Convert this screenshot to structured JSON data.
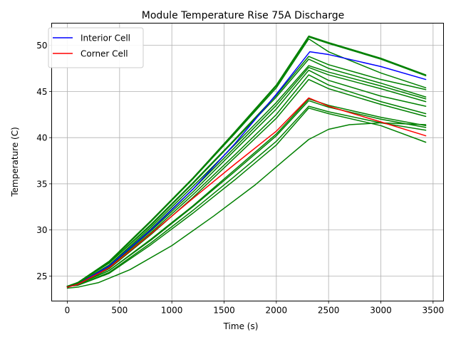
{
  "chart_data": {
    "type": "line",
    "title": "Module Temperature Rise 75A Discharge",
    "xlabel": "Time (s)",
    "ylabel": "Temperature (C)",
    "xlim": [
      -150,
      3600
    ],
    "ylim": [
      22.3,
      52.4
    ],
    "xticks": [
      0,
      500,
      1000,
      1500,
      2000,
      2500,
      3000,
      3500
    ],
    "yticks": [
      25,
      30,
      35,
      40,
      45,
      50
    ],
    "grid": true,
    "legend_position": "top-left",
    "series": [
      {
        "name": "",
        "color": "#008000",
        "values": [
          [
            0,
            23.9
          ],
          [
            100,
            24.3
          ],
          [
            400,
            26.6
          ],
          [
            800,
            31.0
          ],
          [
            1200,
            35.6
          ],
          [
            1600,
            40.6
          ],
          [
            2000,
            45.7
          ],
          [
            2310,
            51.0
          ],
          [
            2500,
            50.3
          ],
          [
            3000,
            48.6
          ],
          [
            3430,
            46.8
          ]
        ]
      },
      {
        "name": "",
        "color": "#008000",
        "values": [
          [
            0,
            23.9
          ],
          [
            100,
            24.3
          ],
          [
            400,
            26.6
          ],
          [
            800,
            31.0
          ],
          [
            1200,
            35.6
          ],
          [
            1600,
            40.5
          ],
          [
            2000,
            45.6
          ],
          [
            2310,
            50.9
          ],
          [
            2500,
            50.2
          ],
          [
            3000,
            48.5
          ],
          [
            3430,
            46.7
          ]
        ]
      },
      {
        "name": "",
        "color": "#008000",
        "values": [
          [
            0,
            23.9
          ],
          [
            100,
            24.3
          ],
          [
            400,
            26.5
          ],
          [
            800,
            30.9
          ],
          [
            1200,
            35.5
          ],
          [
            1600,
            40.4
          ],
          [
            2000,
            45.4
          ],
          [
            2310,
            50.7
          ],
          [
            2500,
            49.3
          ],
          [
            3000,
            47.0
          ],
          [
            3430,
            45.4
          ]
        ]
      },
      {
        "name": "",
        "color": "#008000",
        "values": [
          [
            0,
            23.9
          ],
          [
            100,
            24.3
          ],
          [
            400,
            26.4
          ],
          [
            800,
            30.6
          ],
          [
            1200,
            35.1
          ],
          [
            1600,
            39.8
          ],
          [
            2000,
            44.6
          ],
          [
            2310,
            48.8
          ],
          [
            2500,
            47.9
          ],
          [
            3000,
            46.3
          ],
          [
            3430,
            45.2
          ]
        ]
      },
      {
        "name": "",
        "color": "#008000",
        "values": [
          [
            0,
            23.9
          ],
          [
            100,
            24.3
          ],
          [
            400,
            26.4
          ],
          [
            800,
            30.5
          ],
          [
            1200,
            35.0
          ],
          [
            1600,
            39.7
          ],
          [
            2000,
            44.4
          ],
          [
            2310,
            48.5
          ],
          [
            2500,
            47.5
          ],
          [
            3000,
            45.9
          ],
          [
            3430,
            44.4
          ]
        ]
      },
      {
        "name": "",
        "color": "#008000",
        "values": [
          [
            0,
            23.9
          ],
          [
            100,
            24.2
          ],
          [
            400,
            26.2
          ],
          [
            800,
            30.3
          ],
          [
            1200,
            34.7
          ],
          [
            1600,
            39.2
          ],
          [
            2000,
            43.8
          ],
          [
            2310,
            47.8
          ],
          [
            2500,
            47.1
          ],
          [
            3000,
            45.6
          ],
          [
            3430,
            44.2
          ]
        ]
      },
      {
        "name": "",
        "color": "#008000",
        "values": [
          [
            0,
            23.9
          ],
          [
            100,
            24.2
          ],
          [
            400,
            26.1
          ],
          [
            800,
            30.1
          ],
          [
            1200,
            34.4
          ],
          [
            1600,
            38.9
          ],
          [
            2000,
            43.5
          ],
          [
            2310,
            47.6
          ],
          [
            2500,
            46.8
          ],
          [
            3000,
            45.3
          ],
          [
            3430,
            43.9
          ]
        ]
      },
      {
        "name": "",
        "color": "#008000",
        "values": [
          [
            0,
            23.9
          ],
          [
            100,
            24.2
          ],
          [
            400,
            26.0
          ],
          [
            800,
            29.9
          ],
          [
            1200,
            34.1
          ],
          [
            1600,
            38.6
          ],
          [
            2000,
            43.1
          ],
          [
            2310,
            47.3
          ],
          [
            2500,
            46.2
          ],
          [
            3000,
            44.5
          ],
          [
            3430,
            43.4
          ]
        ]
      },
      {
        "name": "",
        "color": "#008000",
        "values": [
          [
            0,
            23.9
          ],
          [
            100,
            24.1
          ],
          [
            400,
            25.9
          ],
          [
            800,
            29.7
          ],
          [
            1200,
            33.8
          ],
          [
            1600,
            38.1
          ],
          [
            2000,
            42.5
          ],
          [
            2310,
            46.8
          ],
          [
            2500,
            45.7
          ],
          [
            3000,
            43.9
          ],
          [
            3430,
            42.6
          ]
        ]
      },
      {
        "name": "",
        "color": "#008000",
        "values": [
          [
            0,
            23.9
          ],
          [
            100,
            24.1
          ],
          [
            400,
            25.8
          ],
          [
            800,
            29.5
          ],
          [
            1200,
            33.5
          ],
          [
            1600,
            37.8
          ],
          [
            2000,
            42.1
          ],
          [
            2310,
            46.3
          ],
          [
            2500,
            45.3
          ],
          [
            3000,
            43.6
          ],
          [
            3430,
            42.3
          ]
        ]
      },
      {
        "name": "",
        "color": "#008000",
        "values": [
          [
            0,
            23.9
          ],
          [
            100,
            24.1
          ],
          [
            400,
            25.6
          ],
          [
            800,
            29.0
          ],
          [
            1200,
            32.6
          ],
          [
            1600,
            36.5
          ],
          [
            2000,
            40.4
          ],
          [
            2310,
            44.2
          ],
          [
            2500,
            43.5
          ],
          [
            3000,
            42.2
          ],
          [
            3430,
            41.3
          ]
        ]
      },
      {
        "name": "",
        "color": "#008000",
        "values": [
          [
            0,
            23.9
          ],
          [
            100,
            24.1
          ],
          [
            400,
            25.6
          ],
          [
            800,
            28.9
          ],
          [
            1200,
            32.5
          ],
          [
            1600,
            36.3
          ],
          [
            2000,
            40.2
          ],
          [
            2310,
            44.0
          ],
          [
            2500,
            43.3
          ],
          [
            3000,
            42.0
          ],
          [
            3430,
            41.1
          ]
        ]
      },
      {
        "name": "",
        "color": "#008000",
        "values": [
          [
            0,
            23.9
          ],
          [
            100,
            24.0
          ],
          [
            400,
            25.4
          ],
          [
            800,
            28.6
          ],
          [
            1200,
            32.1
          ],
          [
            1600,
            35.8
          ],
          [
            2000,
            39.6
          ],
          [
            2310,
            43.4
          ],
          [
            2500,
            42.8
          ],
          [
            3000,
            41.6
          ],
          [
            3430,
            40.8
          ]
        ]
      },
      {
        "name": "",
        "color": "#008000",
        "values": [
          [
            0,
            23.9
          ],
          [
            100,
            24.0
          ],
          [
            400,
            25.3
          ],
          [
            800,
            28.4
          ],
          [
            1200,
            31.8
          ],
          [
            1600,
            35.4
          ],
          [
            2000,
            39.2
          ],
          [
            2310,
            43.2
          ],
          [
            2500,
            42.6
          ],
          [
            3000,
            41.3
          ],
          [
            3430,
            39.5
          ]
        ]
      },
      {
        "name": "",
        "color": "#008000",
        "values": [
          [
            0,
            23.7
          ],
          [
            100,
            23.8
          ],
          [
            300,
            24.3
          ],
          [
            600,
            25.7
          ],
          [
            1000,
            28.3
          ],
          [
            1400,
            31.5
          ],
          [
            1800,
            34.9
          ],
          [
            2100,
            37.8
          ],
          [
            2310,
            39.8
          ],
          [
            2500,
            40.9
          ],
          [
            2700,
            41.4
          ],
          [
            3000,
            41.6
          ],
          [
            3430,
            41.4
          ]
        ]
      },
      {
        "name": "Interior Cell",
        "color": "#0000ff",
        "values": [
          [
            0,
            23.8
          ],
          [
            100,
            24.1
          ],
          [
            400,
            26.1
          ],
          [
            800,
            30.0
          ],
          [
            1200,
            34.4
          ],
          [
            1600,
            39.3
          ],
          [
            2000,
            44.7
          ],
          [
            2320,
            49.3
          ],
          [
            2500,
            49.0
          ],
          [
            3000,
            47.7
          ],
          [
            3430,
            46.3
          ]
        ]
      },
      {
        "name": "Corner Cell",
        "color": "#ff0000",
        "values": [
          [
            0,
            23.8
          ],
          [
            100,
            24.1
          ],
          [
            400,
            25.9
          ],
          [
            800,
            29.6
          ],
          [
            1200,
            33.4
          ],
          [
            1600,
            37.1
          ],
          [
            2000,
            40.7
          ],
          [
            2310,
            44.3
          ],
          [
            2500,
            43.4
          ],
          [
            3000,
            41.7
          ],
          [
            3430,
            40.2
          ]
        ]
      }
    ]
  }
}
